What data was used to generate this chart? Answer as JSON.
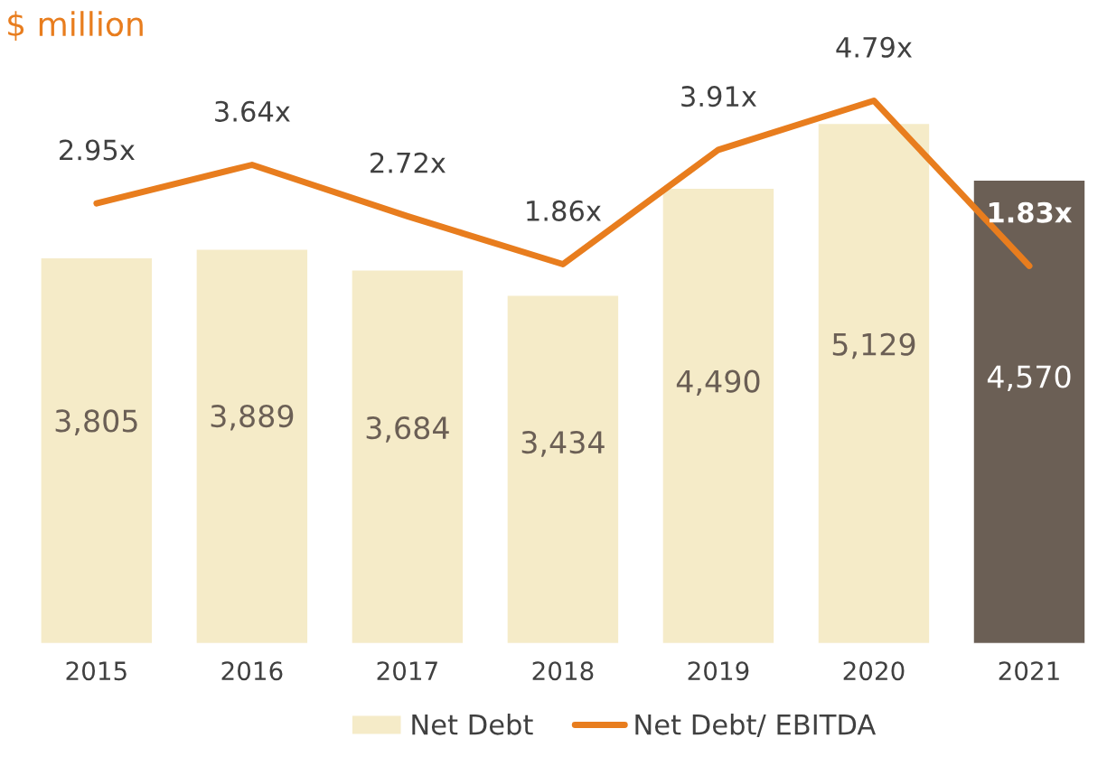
{
  "chart_data": {
    "type": "bar",
    "title": "$ million",
    "categories": [
      "2015",
      "2016",
      "2017",
      "2018",
      "2019",
      "2020",
      "2021"
    ],
    "series": [
      {
        "name": "Net Debt",
        "colors": [
          "#f5ebc8",
          "#f5ebc8",
          "#f5ebc8",
          "#f5ebc8",
          "#f5ebc8",
          "#f5ebc8",
          "#6b5f55"
        ],
        "values": [
          3805,
          3889,
          3684,
          3434,
          4490,
          5129,
          4570
        ],
        "value_labels": [
          "3,805",
          "3,889",
          "3,684",
          "3,434",
          "4,490",
          "5,129",
          "4,570"
        ]
      },
      {
        "name": "Net Debt/ EBITDA",
        "type": "line",
        "axis": "y2",
        "color": "#e87d1e",
        "values": [
          2.95,
          3.64,
          2.72,
          1.86,
          3.91,
          4.79,
          1.83
        ],
        "value_labels": [
          "2.95x",
          "3.64x",
          "2.72x",
          "1.86x",
          "3.91x",
          "4.79x",
          "1.83x"
        ]
      }
    ],
    "tick_labels": "x",
    "grid": false,
    "legend": "bottom",
    "marker": "none",
    "line_style": "solid"
  }
}
